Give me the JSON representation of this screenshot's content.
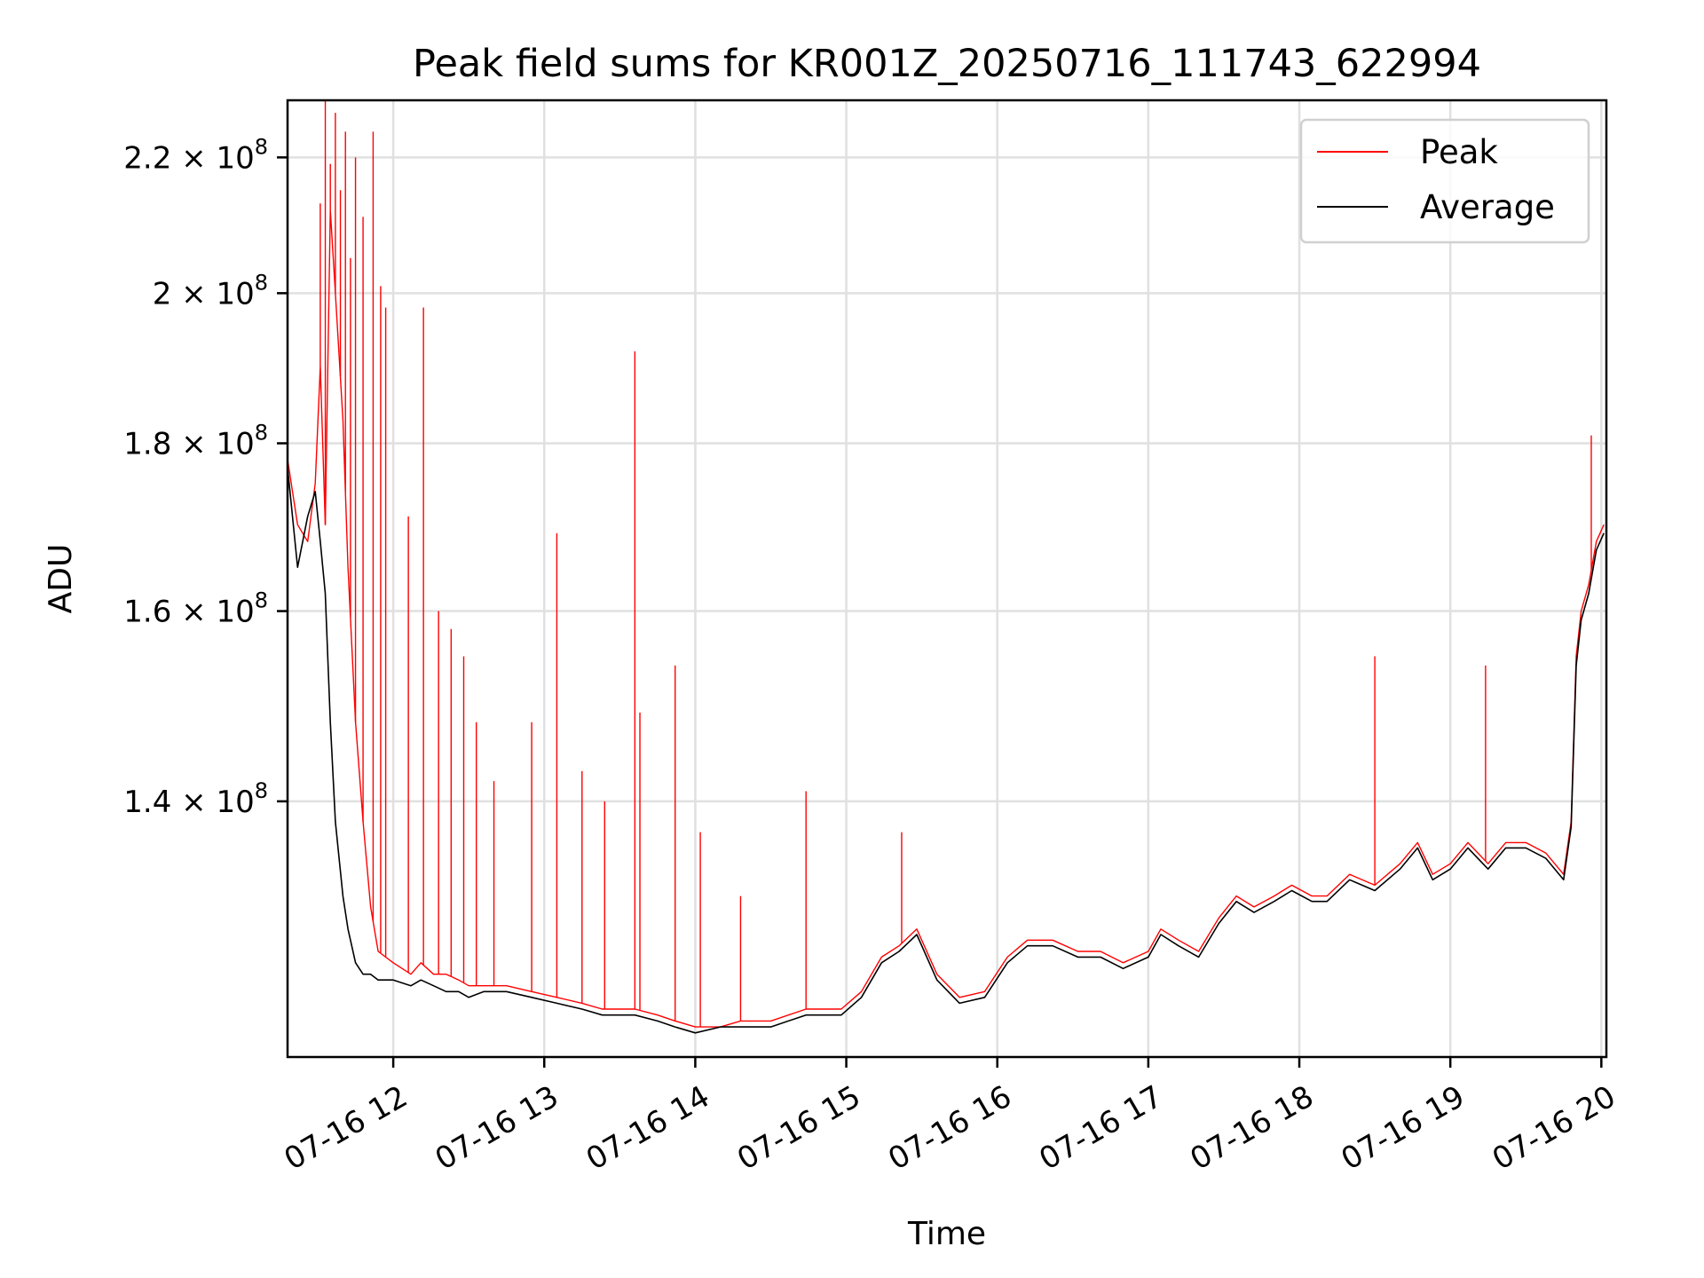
{
  "chart_data": {
    "type": "line",
    "title": "Peak field sums for KR001Z_20250716_111743_622994",
    "xlabel": "Time",
    "ylabel": "ADU",
    "y_scale": "log",
    "xlim": [
      "2025-07-16 11:18",
      "2025-07-16 20:02"
    ],
    "ylim": [
      117000000,
      229000000
    ],
    "grid": true,
    "legend_position": "top-right",
    "x_ticks": [
      {
        "value": "2025-07-16 12:00",
        "label": "07-16 12"
      },
      {
        "value": "2025-07-16 13:00",
        "label": "07-16 13"
      },
      {
        "value": "2025-07-16 14:00",
        "label": "07-16 14"
      },
      {
        "value": "2025-07-16 15:00",
        "label": "07-16 15"
      },
      {
        "value": "2025-07-16 16:00",
        "label": "07-16 16"
      },
      {
        "value": "2025-07-16 17:00",
        "label": "07-16 17"
      },
      {
        "value": "2025-07-16 18:00",
        "label": "07-16 18"
      },
      {
        "value": "2025-07-16 19:00",
        "label": "07-16 19"
      },
      {
        "value": "2025-07-16 20:00",
        "label": "07-16 20"
      }
    ],
    "y_ticks": [
      {
        "value": 140000000,
        "base": "1.4",
        "exp": "8"
      },
      {
        "value": 160000000,
        "base": "1.6",
        "exp": "8"
      },
      {
        "value": 180000000,
        "base": "1.8",
        "exp": "8"
      },
      {
        "value": 200000000,
        "base": "2",
        "exp": "8"
      },
      {
        "value": 220000000,
        "base": "2.2",
        "exp": "8"
      }
    ],
    "series": [
      {
        "name": "Peak",
        "color": "#ff0000",
        "x": [
          "2025-07-16 11:18",
          "2025-07-16 11:22",
          "2025-07-16 11:26",
          "2025-07-16 11:29",
          "2025-07-16 11:31",
          "2025-07-16 11:33",
          "2025-07-16 11:35",
          "2025-07-16 11:37",
          "2025-07-16 11:40",
          "2025-07-16 11:42",
          "2025-07-16 11:45",
          "2025-07-16 11:48",
          "2025-07-16 11:51",
          "2025-07-16 11:54",
          "2025-07-16 12:00",
          "2025-07-16 12:07",
          "2025-07-16 12:11",
          "2025-07-16 12:16",
          "2025-07-16 12:21",
          "2025-07-16 12:26",
          "2025-07-16 12:30",
          "2025-07-16 12:36",
          "2025-07-16 12:45",
          "2025-07-16 12:55",
          "2025-07-16 13:05",
          "2025-07-16 13:15",
          "2025-07-16 13:23",
          "2025-07-16 13:36",
          "2025-07-16 13:45",
          "2025-07-16 13:52",
          "2025-07-16 14:00",
          "2025-07-16 14:10",
          "2025-07-16 14:18",
          "2025-07-16 14:30",
          "2025-07-16 14:44",
          "2025-07-16 14:58",
          "2025-07-16 15:06",
          "2025-07-16 15:14",
          "2025-07-16 15:21",
          "2025-07-16 15:28",
          "2025-07-16 15:36",
          "2025-07-16 15:45",
          "2025-07-16 15:55",
          "2025-07-16 16:04",
          "2025-07-16 16:12",
          "2025-07-16 16:22",
          "2025-07-16 16:32",
          "2025-07-16 16:41",
          "2025-07-16 16:50",
          "2025-07-16 17:00",
          "2025-07-16 17:05",
          "2025-07-16 17:12",
          "2025-07-16 17:20",
          "2025-07-16 17:28",
          "2025-07-16 17:35",
          "2025-07-16 17:42",
          "2025-07-16 17:50",
          "2025-07-16 17:57",
          "2025-07-16 18:05",
          "2025-07-16 18:11",
          "2025-07-16 18:20",
          "2025-07-16 18:30",
          "2025-07-16 18:40",
          "2025-07-16 18:47",
          "2025-07-16 18:53",
          "2025-07-16 19:00",
          "2025-07-16 19:07",
          "2025-07-16 19:15",
          "2025-07-16 19:22",
          "2025-07-16 19:30",
          "2025-07-16 19:38",
          "2025-07-16 19:45",
          "2025-07-16 19:48",
          "2025-07-16 19:50",
          "2025-07-16 19:52",
          "2025-07-16 19:55",
          "2025-07-16 19:58",
          "2025-07-16 20:01"
        ],
        "y": [
          178000000,
          170000000,
          168000000,
          175000000,
          190000000,
          170000000,
          212000000,
          200000000,
          183000000,
          165000000,
          148000000,
          138000000,
          130000000,
          126000000,
          125000000,
          124000000,
          125000000,
          124000000,
          124000000,
          123500000,
          123000000,
          123000000,
          123000000,
          122500000,
          122000000,
          121500000,
          121000000,
          121000000,
          120500000,
          120000000,
          119500000,
          119500000,
          120000000,
          120000000,
          121000000,
          121000000,
          122500000,
          125500000,
          126500000,
          128000000,
          124000000,
          122000000,
          122500000,
          125500000,
          127000000,
          127000000,
          126000000,
          126000000,
          125000000,
          126000000,
          128000000,
          127000000,
          126000000,
          129000000,
          131000000,
          130000000,
          131000000,
          132000000,
          131000000,
          131000000,
          133000000,
          132000000,
          134000000,
          136000000,
          133000000,
          134000000,
          136000000,
          134000000,
          136000000,
          136000000,
          135000000,
          133000000,
          138000000,
          155000000,
          160000000,
          163000000,
          168000000,
          170000000
        ],
        "spikes": [
          {
            "x": "2025-07-16 11:31",
            "y": 213000000
          },
          {
            "x": "2025-07-16 11:33",
            "y": 229000000
          },
          {
            "x": "2025-07-16 11:35",
            "y": 219000000
          },
          {
            "x": "2025-07-16 11:37",
            "y": 227000000
          },
          {
            "x": "2025-07-16 11:39",
            "y": 215000000
          },
          {
            "x": "2025-07-16 11:41",
            "y": 224000000
          },
          {
            "x": "2025-07-16 11:43",
            "y": 205000000
          },
          {
            "x": "2025-07-16 11:45",
            "y": 220000000
          },
          {
            "x": "2025-07-16 11:48",
            "y": 211000000
          },
          {
            "x": "2025-07-16 11:52",
            "y": 224000000
          },
          {
            "x": "2025-07-16 11:55",
            "y": 201000000
          },
          {
            "x": "2025-07-16 11:57",
            "y": 198000000
          },
          {
            "x": "2025-07-16 12:06",
            "y": 171000000
          },
          {
            "x": "2025-07-16 12:12",
            "y": 198000000
          },
          {
            "x": "2025-07-16 12:18",
            "y": 160000000
          },
          {
            "x": "2025-07-16 12:23",
            "y": 158000000
          },
          {
            "x": "2025-07-16 12:28",
            "y": 155000000
          },
          {
            "x": "2025-07-16 12:33",
            "y": 148000000
          },
          {
            "x": "2025-07-16 12:40",
            "y": 142000000
          },
          {
            "x": "2025-07-16 12:55",
            "y": 148000000
          },
          {
            "x": "2025-07-16 13:05",
            "y": 169000000
          },
          {
            "x": "2025-07-16 13:15",
            "y": 143000000
          },
          {
            "x": "2025-07-16 13:24",
            "y": 140000000
          },
          {
            "x": "2025-07-16 13:36",
            "y": 192000000
          },
          {
            "x": "2025-07-16 13:38",
            "y": 149000000
          },
          {
            "x": "2025-07-16 13:52",
            "y": 154000000
          },
          {
            "x": "2025-07-16 14:02",
            "y": 137000000
          },
          {
            "x": "2025-07-16 14:18",
            "y": 131000000
          },
          {
            "x": "2025-07-16 14:44",
            "y": 141000000
          },
          {
            "x": "2025-07-16 15:22",
            "y": 137000000
          },
          {
            "x": "2025-07-16 18:30",
            "y": 155000000
          },
          {
            "x": "2025-07-16 19:14",
            "y": 154000000
          },
          {
            "x": "2025-07-16 19:56",
            "y": 181000000
          }
        ]
      },
      {
        "name": "Average",
        "color": "#000000",
        "x": [
          "2025-07-16 11:18",
          "2025-07-16 11:22",
          "2025-07-16 11:26",
          "2025-07-16 11:29",
          "2025-07-16 11:31",
          "2025-07-16 11:33",
          "2025-07-16 11:35",
          "2025-07-16 11:37",
          "2025-07-16 11:40",
          "2025-07-16 11:42",
          "2025-07-16 11:45",
          "2025-07-16 11:48",
          "2025-07-16 11:51",
          "2025-07-16 11:54",
          "2025-07-16 12:00",
          "2025-07-16 12:07",
          "2025-07-16 12:11",
          "2025-07-16 12:16",
          "2025-07-16 12:21",
          "2025-07-16 12:26",
          "2025-07-16 12:30",
          "2025-07-16 12:36",
          "2025-07-16 12:45",
          "2025-07-16 12:55",
          "2025-07-16 13:05",
          "2025-07-16 13:15",
          "2025-07-16 13:23",
          "2025-07-16 13:36",
          "2025-07-16 13:45",
          "2025-07-16 13:52",
          "2025-07-16 14:00",
          "2025-07-16 14:10",
          "2025-07-16 14:18",
          "2025-07-16 14:30",
          "2025-07-16 14:44",
          "2025-07-16 14:58",
          "2025-07-16 15:06",
          "2025-07-16 15:14",
          "2025-07-16 15:21",
          "2025-07-16 15:28",
          "2025-07-16 15:36",
          "2025-07-16 15:45",
          "2025-07-16 15:55",
          "2025-07-16 16:04",
          "2025-07-16 16:12",
          "2025-07-16 16:22",
          "2025-07-16 16:32",
          "2025-07-16 16:41",
          "2025-07-16 16:50",
          "2025-07-16 17:00",
          "2025-07-16 17:05",
          "2025-07-16 17:12",
          "2025-07-16 17:20",
          "2025-07-16 17:28",
          "2025-07-16 17:35",
          "2025-07-16 17:42",
          "2025-07-16 17:50",
          "2025-07-16 17:57",
          "2025-07-16 18:05",
          "2025-07-16 18:11",
          "2025-07-16 18:20",
          "2025-07-16 18:30",
          "2025-07-16 18:40",
          "2025-07-16 18:47",
          "2025-07-16 18:53",
          "2025-07-16 19:00",
          "2025-07-16 19:07",
          "2025-07-16 19:15",
          "2025-07-16 19:22",
          "2025-07-16 19:30",
          "2025-07-16 19:38",
          "2025-07-16 19:45",
          "2025-07-16 19:48",
          "2025-07-16 19:50",
          "2025-07-16 19:52",
          "2025-07-16 19:55",
          "2025-07-16 19:58",
          "2025-07-16 20:01"
        ],
        "y": [
          177000000,
          165000000,
          171000000,
          174000000,
          168000000,
          162000000,
          148000000,
          138000000,
          131000000,
          128000000,
          125000000,
          124000000,
          124000000,
          123500000,
          123500000,
          123000000,
          123500000,
          123000000,
          122500000,
          122500000,
          122000000,
          122500000,
          122500000,
          122000000,
          121500000,
          121000000,
          120500000,
          120500000,
          120000000,
          119500000,
          119000000,
          119500000,
          119500000,
          119500000,
          120500000,
          120500000,
          122000000,
          125000000,
          126000000,
          127500000,
          123500000,
          121500000,
          122000000,
          125000000,
          126500000,
          126500000,
          125500000,
          125500000,
          124500000,
          125500000,
          127500000,
          126500000,
          125500000,
          128500000,
          130500000,
          129500000,
          130500000,
          131500000,
          130500000,
          130500000,
          132500000,
          131500000,
          133500000,
          135500000,
          132500000,
          133500000,
          135500000,
          133500000,
          135500000,
          135500000,
          134500000,
          132500000,
          137500000,
          154000000,
          159000000,
          162000000,
          167000000,
          169000000
        ]
      }
    ]
  }
}
